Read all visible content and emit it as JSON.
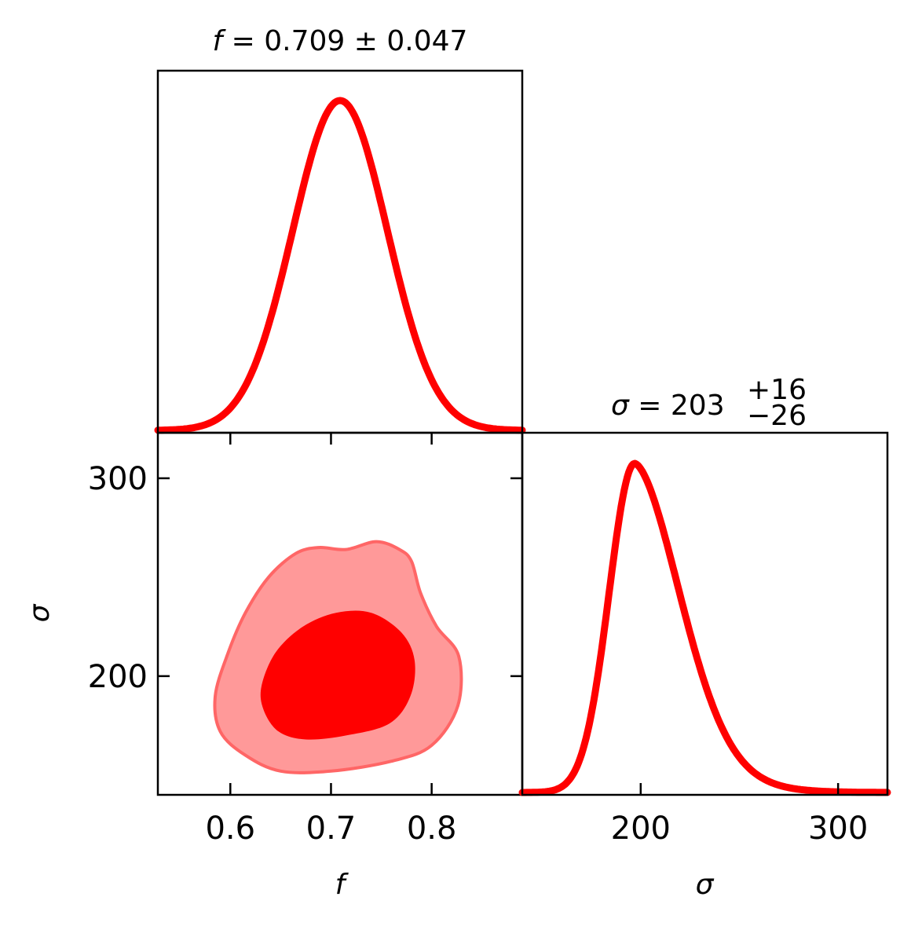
{
  "chart_data": [
    {
      "panel": "f-marginal",
      "type": "line",
      "title_lhs": "f",
      "title_eq": " = 0.709 ± 0.047",
      "mean": 0.709,
      "sigma": 0.047,
      "xlim": [
        0.528,
        0.89
      ],
      "x_ticks": [
        0.6,
        0.7,
        0.8
      ],
      "color": "#ff0000"
    },
    {
      "panel": "sigma-marginal",
      "type": "line",
      "title_lhs": "σ",
      "title_eq": " = 203",
      "title_sup": "+16",
      "title_sub": "−26",
      "mode": 197,
      "err_plus": 16,
      "err_minus": 26,
      "xlim": [
        140,
        325
      ],
      "x_ticks": [
        "200",
        "300"
      ],
      "x_tick_values": [
        200,
        300
      ],
      "xlabel": "σ",
      "color": "#ff0000"
    },
    {
      "panel": "joint-f-sigma",
      "type": "contour",
      "xlim": [
        0.528,
        0.89
      ],
      "ylim": [
        140,
        323
      ],
      "x_ticks": [
        "0.6",
        "0.7",
        "0.8"
      ],
      "x_tick_values": [
        0.6,
        0.7,
        0.8
      ],
      "y_ticks": [
        "300",
        "200"
      ],
      "y_tick_values": [
        300,
        200
      ],
      "xlabel": "f",
      "ylabel": "σ",
      "contours": [
        {
          "level": "outer",
          "fill": "#ff9999",
          "edge": "#ff6666",
          "points": [
            [
              0.585,
              190
            ],
            [
              0.598,
              212
            ],
            [
              0.615,
              232
            ],
            [
              0.638,
              250
            ],
            [
              0.665,
              262
            ],
            [
              0.688,
              265
            ],
            [
              0.715,
              264
            ],
            [
              0.745,
              268
            ],
            [
              0.768,
              264
            ],
            [
              0.78,
              258
            ],
            [
              0.789,
              242
            ],
            [
              0.805,
              225
            ],
            [
              0.827,
              210
            ],
            [
              0.826,
              185
            ],
            [
              0.8,
              165
            ],
            [
              0.76,
              157
            ],
            [
              0.7,
              152
            ],
            [
              0.65,
              152
            ],
            [
              0.615,
              160
            ],
            [
              0.59,
              172
            ]
          ]
        },
        {
          "level": "inner",
          "fill": "#ff0000",
          "points": [
            [
              0.631,
              195
            ],
            [
              0.645,
              212
            ],
            [
              0.672,
              225
            ],
            [
              0.705,
              232
            ],
            [
              0.74,
              232
            ],
            [
              0.77,
              222
            ],
            [
              0.783,
              208
            ],
            [
              0.779,
              190
            ],
            [
              0.758,
              176
            ],
            [
              0.715,
              170
            ],
            [
              0.675,
              168
            ],
            [
              0.648,
              172
            ],
            [
              0.633,
              183
            ]
          ]
        }
      ]
    }
  ]
}
